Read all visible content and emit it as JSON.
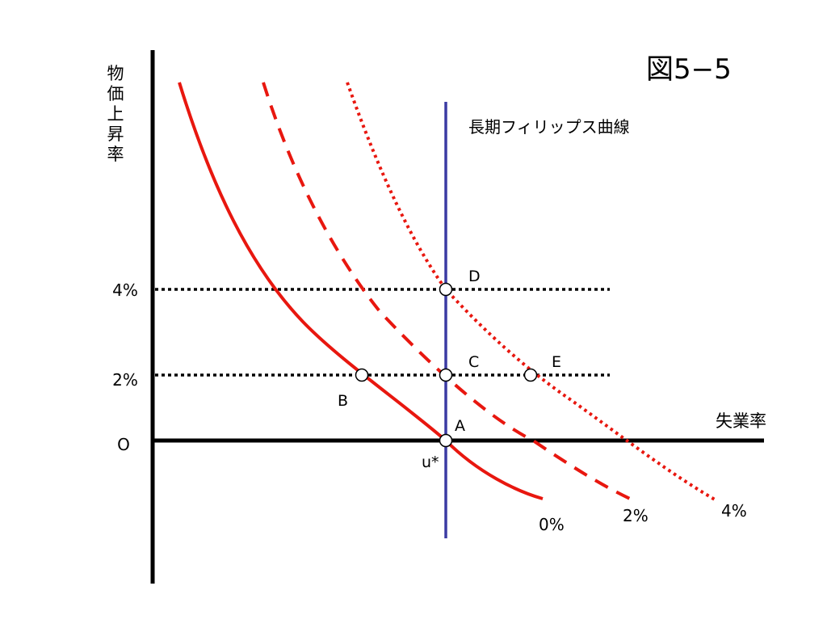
{
  "figure_title": "図5−5",
  "y_axis_label": "物価上昇率",
  "x_axis_label": "失業率",
  "origin_label": "O",
  "natural_rate_label": "u*",
  "long_run_curve_label": "長期フィリップス曲線",
  "y_ticks": [
    "4%",
    "2%"
  ],
  "curves": [
    {
      "label": "0%",
      "expected_inflation": 0,
      "style": "solid",
      "color": "#e8170f"
    },
    {
      "label": "2%",
      "expected_inflation": 2,
      "style": "dashed",
      "color": "#e8170f"
    },
    {
      "label": "4%",
      "expected_inflation": 4,
      "style": "dotted",
      "color": "#e8170f"
    }
  ],
  "long_run_color": "#3b3ba3",
  "points": {
    "A": "A",
    "B": "B",
    "C": "C",
    "D": "D",
    "E": "E"
  }
}
